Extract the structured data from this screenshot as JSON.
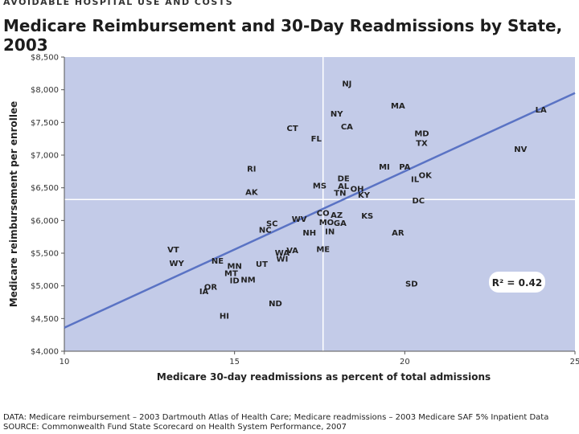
{
  "header": {
    "section_tag": "AVOIDABLE HOSPITAL USE AND COSTS",
    "title": "Medicare Reimbursement and 30-Day Readmissions by State, 2003"
  },
  "footer": {
    "data_line": "DATA: Medicare reimbursement – 2003 Dartmouth Atlas of Health Care; Medicare readmissions – 2003 Medicare SAF 5% Inpatient Data",
    "source_line": "SOURCE: Commonwealth Fund State Scorecard on Health System Performance, 2007"
  },
  "colors": {
    "plot_background": "#c3cbe8",
    "trend_line": "#5a73c4",
    "reference_lines": "#ffffff",
    "label_text": "#222222"
  },
  "chart_data": {
    "type": "scatter",
    "xlabel": "Medicare 30-day readmissions as percent of total admissions",
    "ylabel": "Medicare reimbursement per enrollee",
    "xlim": [
      10,
      25
    ],
    "ylim": [
      4000,
      8500
    ],
    "x_ticks": [
      10,
      15,
      20,
      25
    ],
    "x_tick_labels": [
      "10",
      "15",
      "20",
      "25"
    ],
    "y_ticks": [
      4000,
      4500,
      5000,
      5500,
      6000,
      6500,
      7000,
      7500,
      8000,
      8500
    ],
    "y_tick_labels": [
      "$4,000",
      "$4,500",
      "$5,000",
      "$5,500",
      "$6,000",
      "$6,500",
      "$7,000",
      "$7,500",
      "$8,000",
      "$8,500"
    ],
    "reference_x": 17.6,
    "reference_y": 6320,
    "trend_line": {
      "x": [
        10,
        25
      ],
      "y": [
        4360,
        7950
      ]
    },
    "r_squared_label": "R² = 0.42",
    "points": [
      {
        "label": "NJ",
        "x": 18.3,
        "y": 8100
      },
      {
        "label": "MA",
        "x": 19.8,
        "y": 7760
      },
      {
        "label": "LA",
        "x": 24.0,
        "y": 7700
      },
      {
        "label": "NY",
        "x": 18.0,
        "y": 7640
      },
      {
        "label": "CA",
        "x": 18.3,
        "y": 7440
      },
      {
        "label": "CT",
        "x": 16.7,
        "y": 7420
      },
      {
        "label": "MD",
        "x": 20.5,
        "y": 7340
      },
      {
        "label": "FL",
        "x": 17.4,
        "y": 7260
      },
      {
        "label": "TX",
        "x": 20.5,
        "y": 7190
      },
      {
        "label": "NV",
        "x": 23.4,
        "y": 7100
      },
      {
        "label": "MI",
        "x": 19.4,
        "y": 6830
      },
      {
        "label": "PA",
        "x": 20.0,
        "y": 6830
      },
      {
        "label": "RI",
        "x": 15.5,
        "y": 6800
      },
      {
        "label": "OK",
        "x": 20.6,
        "y": 6700
      },
      {
        "label": "DE",
        "x": 18.2,
        "y": 6650
      },
      {
        "label": "IL",
        "x": 20.3,
        "y": 6640
      },
      {
        "label": "MS",
        "x": 17.5,
        "y": 6540
      },
      {
        "label": "AL",
        "x": 18.2,
        "y": 6530
      },
      {
        "label": "OH",
        "x": 18.6,
        "y": 6490
      },
      {
        "label": "AK",
        "x": 15.5,
        "y": 6440
      },
      {
        "label": "TN",
        "x": 18.1,
        "y": 6430
      },
      {
        "label": "KY",
        "x": 18.8,
        "y": 6400
      },
      {
        "label": "DC",
        "x": 20.4,
        "y": 6310
      },
      {
        "label": "CO",
        "x": 17.6,
        "y": 6120
      },
      {
        "label": "AZ",
        "x": 18.0,
        "y": 6090
      },
      {
        "label": "KS",
        "x": 18.9,
        "y": 6080
      },
      {
        "label": "WV",
        "x": 16.9,
        "y": 6030
      },
      {
        "label": "MO",
        "x": 17.7,
        "y": 5980
      },
      {
        "label": "GA",
        "x": 18.1,
        "y": 5970
      },
      {
        "label": "SC",
        "x": 16.1,
        "y": 5960
      },
      {
        "label": "NC",
        "x": 15.9,
        "y": 5860
      },
      {
        "label": "IN",
        "x": 17.8,
        "y": 5840
      },
      {
        "label": "NH",
        "x": 17.2,
        "y": 5820
      },
      {
        "label": "AR",
        "x": 19.8,
        "y": 5820
      },
      {
        "label": "VT",
        "x": 13.2,
        "y": 5560
      },
      {
        "label": "ME",
        "x": 17.6,
        "y": 5570
      },
      {
        "label": "VA",
        "x": 16.7,
        "y": 5550
      },
      {
        "label": "WA",
        "x": 16.4,
        "y": 5510
      },
      {
        "label": "WI",
        "x": 16.4,
        "y": 5420
      },
      {
        "label": "NE",
        "x": 14.5,
        "y": 5390
      },
      {
        "label": "UT",
        "x": 15.8,
        "y": 5340
      },
      {
        "label": "WY",
        "x": 13.3,
        "y": 5350
      },
      {
        "label": "MN",
        "x": 15.0,
        "y": 5310
      },
      {
        "label": "MT",
        "x": 14.9,
        "y": 5200
      },
      {
        "label": "ID",
        "x": 15.0,
        "y": 5090
      },
      {
        "label": "NM",
        "x": 15.4,
        "y": 5100
      },
      {
        "label": "SD",
        "x": 20.2,
        "y": 5040
      },
      {
        "label": "OR",
        "x": 14.3,
        "y": 4990
      },
      {
        "label": "IA",
        "x": 14.1,
        "y": 4920
      },
      {
        "label": "ND",
        "x": 16.2,
        "y": 4740
      },
      {
        "label": "HI",
        "x": 14.7,
        "y": 4550
      }
    ]
  }
}
